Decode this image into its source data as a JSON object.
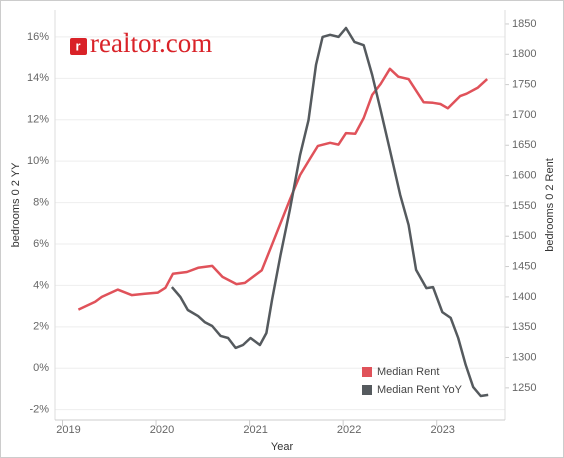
{
  "chart_data": {
    "type": "line",
    "logo": "realtor.com",
    "xlabel": "Year",
    "ylabel": "bedrooms 0 2 YY",
    "y2label": "bedrooms 0 2 Rent",
    "xlim": [
      2018.92,
      2023.73
    ],
    "xticks": [
      2019,
      2020,
      2021,
      2022,
      2023
    ],
    "ylim": [
      -2.5,
      17.3
    ],
    "yticks": [
      {
        "value": -2,
        "label": "-2%"
      },
      {
        "value": 0,
        "label": "0%"
      },
      {
        "value": 2,
        "label": "2%"
      },
      {
        "value": 4,
        "label": "4%"
      },
      {
        "value": 6,
        "label": "6%"
      },
      {
        "value": 8,
        "label": "8%"
      },
      {
        "value": 10,
        "label": "10%"
      },
      {
        "value": 12,
        "label": "12%"
      },
      {
        "value": 14,
        "label": "14%"
      },
      {
        "value": 16,
        "label": "16%"
      }
    ],
    "y2lim": [
      1197,
      1873
    ],
    "y2ticks": [
      1250,
      1300,
      1350,
      1400,
      1450,
      1500,
      1550,
      1600,
      1650,
      1700,
      1750,
      1800,
      1850
    ],
    "grid": true,
    "legend": "lower right",
    "series": [
      {
        "name": "Median Rent",
        "color": "#e0525a",
        "axis": "y2",
        "x": [
          2019.17,
          2019.35,
          2019.42,
          2019.59,
          2019.74,
          2019.88,
          2020.02,
          2020.1,
          2020.18,
          2020.33,
          2020.45,
          2020.6,
          2020.71,
          2020.86,
          2020.95,
          2021.13,
          2021.24,
          2021.43,
          2021.54,
          2021.65,
          2021.73,
          2021.86,
          2021.95,
          2022.03,
          2022.13,
          2022.22,
          2022.31,
          2022.4,
          2022.5,
          2022.59,
          2022.7,
          2022.86,
          2022.96,
          2023.04,
          2023.12,
          2023.25,
          2023.32,
          2023.44,
          2023.54
        ],
        "values": [
          1379,
          1392,
          1400,
          1412,
          1403,
          1405,
          1407,
          1415,
          1438,
          1441,
          1448,
          1451,
          1433,
          1421,
          1423,
          1444,
          1486,
          1560,
          1601,
          1629,
          1649,
          1654,
          1651,
          1670,
          1669,
          1695,
          1733,
          1751,
          1776,
          1763,
          1759,
          1721,
          1720,
          1718,
          1711,
          1731,
          1735,
          1745,
          1759
        ]
      },
      {
        "name": "Median Rent YoY",
        "color": "#555a5e",
        "x": [
          2020.17,
          2020.26,
          2020.34,
          2020.45,
          2020.52,
          2020.6,
          2020.69,
          2020.77,
          2020.85,
          2020.93,
          2021.01,
          2021.11,
          2021.18,
          2021.24,
          2021.33,
          2021.43,
          2021.54,
          2021.63,
          2021.71,
          2021.78,
          2021.86,
          2021.95,
          2022.03,
          2022.12,
          2022.22,
          2022.31,
          2022.4,
          2022.5,
          2022.61,
          2022.7,
          2022.78,
          2022.89,
          2022.96,
          2023.06,
          2023.15,
          2023.23,
          2023.31,
          2023.39,
          2023.47,
          2023.55
        ],
        "values": [
          3.92,
          3.44,
          2.81,
          2.52,
          2.23,
          2.04,
          1.56,
          1.46,
          0.98,
          1.12,
          1.46,
          1.12,
          1.7,
          3.29,
          5.46,
          7.64,
          10.3,
          11.98,
          14.65,
          16.0,
          16.1,
          16.0,
          16.43,
          15.76,
          15.6,
          14.16,
          12.47,
          10.54,
          8.37,
          6.92,
          4.75,
          3.87,
          3.92,
          2.71,
          2.43,
          1.46,
          0.16,
          -0.91,
          -1.34,
          -1.29
        ]
      }
    ]
  }
}
